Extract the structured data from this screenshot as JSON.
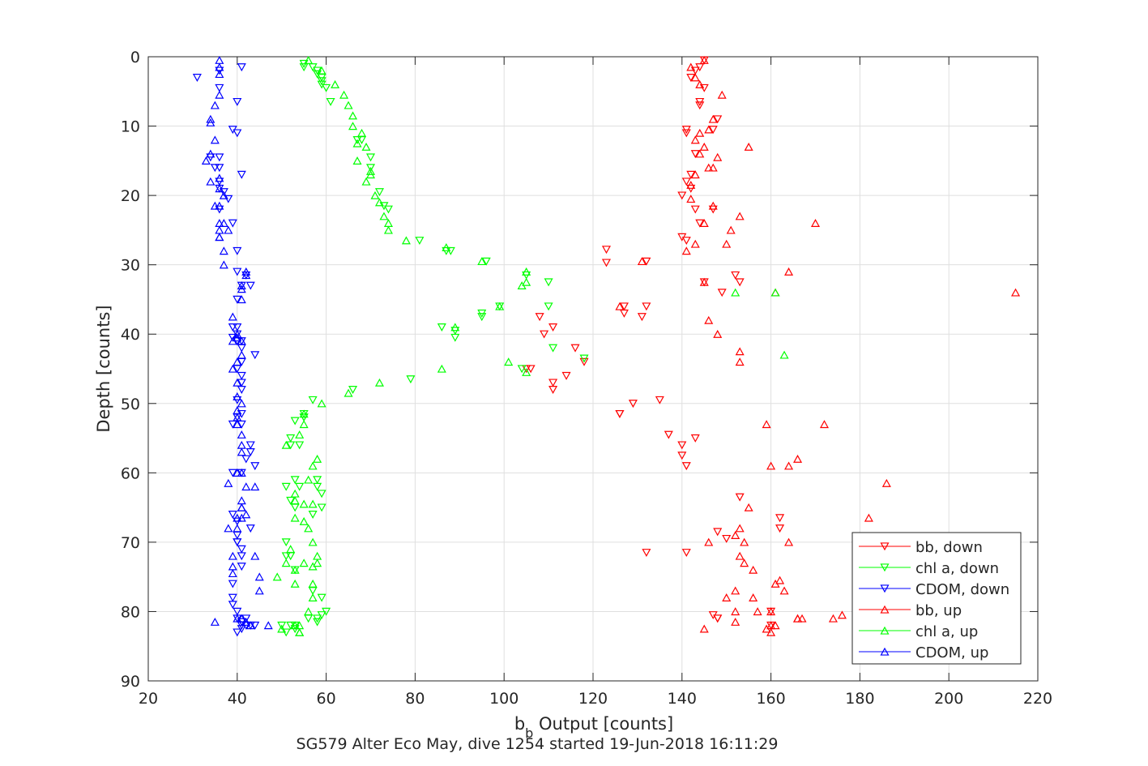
{
  "chart_data": {
    "type": "scatter",
    "title": "SG579 Alter Eco May, dive 1254 started 19-Jun-2018 16:11:29",
    "xlabel_main": "b",
    "xlabel_sub": "b",
    "xlabel_rest": " Output [counts]",
    "ylabel": "Depth [counts]",
    "xlim": [
      20,
      220
    ],
    "ylim": [
      0,
      90
    ],
    "y_reversed": true,
    "xticks": [
      20,
      40,
      60,
      80,
      100,
      120,
      140,
      160,
      180,
      200,
      220
    ],
    "yticks": [
      0,
      10,
      20,
      30,
      40,
      50,
      60,
      70,
      80,
      90
    ],
    "grid": true,
    "legend_position": "bottom-right",
    "series": [
      {
        "name": "bb, down",
        "color": "#ff0000",
        "marker": "triangle-down",
        "x": [
          145,
          144,
          142,
          143,
          145,
          144,
          147,
          148,
          144,
          141,
          141,
          143,
          142,
          141,
          142,
          143,
          140,
          147,
          144,
          140,
          141,
          123,
          123,
          127,
          132,
          145,
          152,
          153,
          149,
          127,
          131,
          132,
          106,
          108,
          109,
          111,
          116,
          105,
          111,
          111,
          114,
          118,
          129,
          126,
          135,
          126,
          137,
          143,
          140,
          140,
          141,
          147,
          153,
          162,
          162,
          148,
          150,
          132,
          141,
          160,
          160,
          148,
          148
        ],
        "y": [
          0.5,
          1.5,
          3,
          2,
          4.5,
          6.5,
          10.5,
          9,
          7,
          10.5,
          11,
          14,
          17,
          18,
          19,
          22,
          20,
          22,
          24,
          26,
          26.5,
          27.8,
          29.7,
          36,
          29.5,
          32.5,
          31.5,
          32.5,
          34,
          37,
          37.5,
          36,
          45,
          37.5,
          40,
          39,
          42,
          45,
          47,
          48,
          46,
          44,
          50,
          51.5,
          49.5,
          51.5,
          54.5,
          55,
          56,
          57.5,
          59,
          80.5,
          63.5,
          66.5,
          68,
          68.5,
          69.5,
          71.5,
          71.5,
          80,
          82,
          81,
          81
        ]
      },
      {
        "name": "chl a, down",
        "color": "#00ff00",
        "marker": "triangle-down",
        "x": [
          55,
          55,
          57,
          58,
          58,
          59,
          59,
          59,
          60,
          61,
          67,
          68,
          70,
          70,
          72,
          73,
          74,
          81,
          87,
          88,
          96,
          105,
          110,
          110,
          99,
          95,
          95,
          86,
          89,
          89,
          118,
          111,
          104,
          79,
          66,
          57,
          53,
          55,
          55,
          55,
          54,
          52,
          52,
          53,
          54,
          51,
          52,
          58,
          58,
          59,
          53,
          59,
          57,
          51,
          51,
          52,
          53,
          57,
          59,
          60,
          59,
          58,
          58,
          53,
          53,
          50,
          51,
          52,
          56
        ],
        "y": [
          1.5,
          1,
          1.5,
          2,
          2.5,
          3,
          3.5,
          4,
          4.5,
          6.5,
          12,
          12,
          16,
          14.5,
          19.5,
          21.5,
          22,
          26.5,
          28,
          28,
          29.5,
          31.5,
          32.5,
          36,
          36,
          37,
          37.5,
          39,
          39.5,
          40.5,
          43.5,
          42,
          45,
          46.5,
          48,
          49.5,
          52.5,
          51.5,
          52,
          52,
          56,
          55,
          56,
          61,
          62,
          62,
          64,
          61,
          62,
          63,
          65,
          65,
          66,
          70,
          72,
          72,
          74,
          77,
          78,
          80,
          80.5,
          81,
          81.5,
          82,
          82.5,
          82,
          83,
          82,
          81
        ]
      },
      {
        "name": "CDOM, down",
        "color": "#0000ff",
        "marker": "triangle-down",
        "x": [
          31,
          36,
          36,
          41,
          40,
          36,
          40,
          39,
          36,
          35,
          34,
          36,
          41,
          36,
          37,
          38,
          36,
          39,
          40,
          40,
          40,
          42,
          41,
          43,
          39,
          40,
          40,
          39,
          40,
          41,
          41,
          44,
          41,
          40,
          41,
          41,
          41,
          40,
          40,
          41,
          39,
          41,
          43,
          43,
          42,
          39,
          44,
          41,
          39,
          40,
          40,
          40,
          43,
          40,
          41,
          41,
          41,
          39,
          39,
          39,
          40,
          40,
          41,
          42,
          42,
          43,
          41,
          40,
          44,
          41
        ],
        "y": [
          3,
          2,
          4.5,
          1.5,
          6.5,
          14.5,
          11,
          10.5,
          18,
          16,
          14.5,
          16,
          17,
          19,
          19.5,
          20.5,
          22,
          24,
          28,
          31,
          35,
          31.5,
          33,
          33,
          39,
          39,
          40,
          40.5,
          41,
          41,
          42,
          43,
          44,
          45,
          46,
          47,
          48,
          49.5,
          52,
          51.5,
          53,
          53,
          56,
          57,
          58,
          60,
          59,
          60,
          66,
          67,
          69,
          70,
          68,
          70,
          71,
          72,
          73.5,
          76,
          78,
          79,
          80,
          81,
          81.5,
          81,
          82,
          82,
          82,
          83,
          82,
          82.5
        ]
      },
      {
        "name": "bb, up",
        "color": "#ff0000",
        "marker": "triangle-up",
        "x": [
          145,
          142,
          143,
          144,
          149,
          147,
          146,
          143,
          144,
          145,
          144,
          155,
          148,
          147,
          146,
          143,
          142,
          142,
          147,
          153,
          145,
          151,
          170,
          143,
          150,
          131,
          141,
          164,
          145,
          215,
          161,
          126,
          146,
          148,
          153,
          153,
          159,
          172,
          160,
          164,
          166,
          186,
          155,
          153,
          152,
          146,
          154,
          164,
          182,
          153,
          154,
          156,
          162,
          161,
          152,
          163,
          150,
          156,
          152,
          160,
          157,
          152,
          145,
          166,
          161,
          176,
          166,
          174,
          167,
          159,
          160,
          160
        ],
        "y": [
          0.5,
          1.5,
          3,
          4,
          5.5,
          9,
          10.5,
          12,
          11,
          13,
          14,
          13,
          14.5,
          16,
          16,
          17,
          18.5,
          20.5,
          21.5,
          23,
          24,
          25,
          24,
          27,
          27,
          29.5,
          28,
          31,
          32.5,
          34,
          34,
          36,
          38,
          40,
          42.5,
          44,
          53,
          53,
          59,
          59,
          58,
          61.5,
          65,
          68,
          69,
          70,
          70,
          70,
          66.5,
          72,
          73,
          74,
          75.5,
          76,
          77,
          77,
          78,
          78,
          80,
          80,
          80,
          81.5,
          82.5,
          81,
          82,
          80.5,
          81,
          81,
          81,
          82.5,
          82,
          83
        ]
      },
      {
        "name": "chl a, up",
        "color": "#00ff00",
        "marker": "triangle-up",
        "x": [
          56,
          59,
          62,
          64,
          65,
          66,
          66,
          68,
          67,
          67,
          69,
          70,
          69,
          70,
          71,
          72,
          73,
          74,
          74,
          78,
          87,
          95,
          105,
          105,
          104,
          152,
          161,
          99,
          89,
          163,
          101,
          105,
          86,
          72,
          65,
          59,
          55,
          55,
          58,
          54,
          51,
          57,
          56,
          53,
          53,
          55,
          57,
          55,
          53,
          56,
          57,
          52,
          58,
          55,
          53,
          58,
          51,
          57,
          49,
          53,
          57,
          57,
          56,
          50,
          53,
          54,
          54,
          54
        ],
        "y": [
          0.5,
          2,
          4,
          5.5,
          7,
          8.5,
          10,
          11,
          12.5,
          15,
          13,
          16.5,
          18,
          17,
          20,
          21,
          23,
          24,
          25,
          26.5,
          27.5,
          29.5,
          31,
          32.5,
          33,
          34,
          34,
          36,
          39,
          43,
          44,
          45.5,
          45,
          47,
          48.5,
          50,
          51.5,
          53,
          58,
          54.5,
          56,
          59,
          61,
          63,
          64,
          64.5,
          64.5,
          67,
          66.5,
          68,
          70,
          71,
          72,
          73,
          74,
          73,
          73,
          73.5,
          75,
          76,
          76,
          78,
          80,
          82.5,
          82,
          82,
          83,
          83
        ]
      },
      {
        "name": "CDOM, up",
        "color": "#0000ff",
        "marker": "triangle-up",
        "x": [
          36,
          36,
          36,
          36,
          35,
          34,
          34,
          35,
          34,
          33,
          36,
          34,
          36,
          37,
          36,
          35,
          36,
          36,
          37,
          38,
          36,
          36,
          37,
          37,
          41,
          42,
          42,
          41,
          41,
          39,
          40,
          41,
          40,
          39,
          41,
          40,
          39,
          40,
          40,
          41,
          40,
          40,
          40,
          41,
          41,
          41,
          40,
          41,
          42,
          38,
          44,
          41,
          41,
          41,
          42,
          40,
          41,
          40,
          44,
          38,
          39,
          39,
          39,
          45,
          45,
          35,
          41,
          40,
          42,
          43,
          47
        ],
        "y": [
          0.5,
          1.5,
          2.5,
          5.5,
          7,
          9,
          9.5,
          12,
          14,
          15,
          17.5,
          18,
          19,
          20,
          21.5,
          21.5,
          24,
          25,
          24,
          25,
          26,
          26,
          30,
          28,
          33,
          31,
          31.5,
          33.5,
          35,
          37.5,
          40,
          41,
          40.5,
          41,
          43,
          44,
          45,
          47,
          49,
          50,
          51,
          52,
          53,
          54.5,
          56,
          57,
          60,
          60,
          62,
          61.5,
          62,
          64,
          65,
          65,
          66,
          66.5,
          66.5,
          68,
          72,
          68,
          72,
          73.5,
          74.5,
          75,
          77,
          81.5,
          81,
          81,
          81.5,
          82,
          82
        ]
      }
    ]
  }
}
